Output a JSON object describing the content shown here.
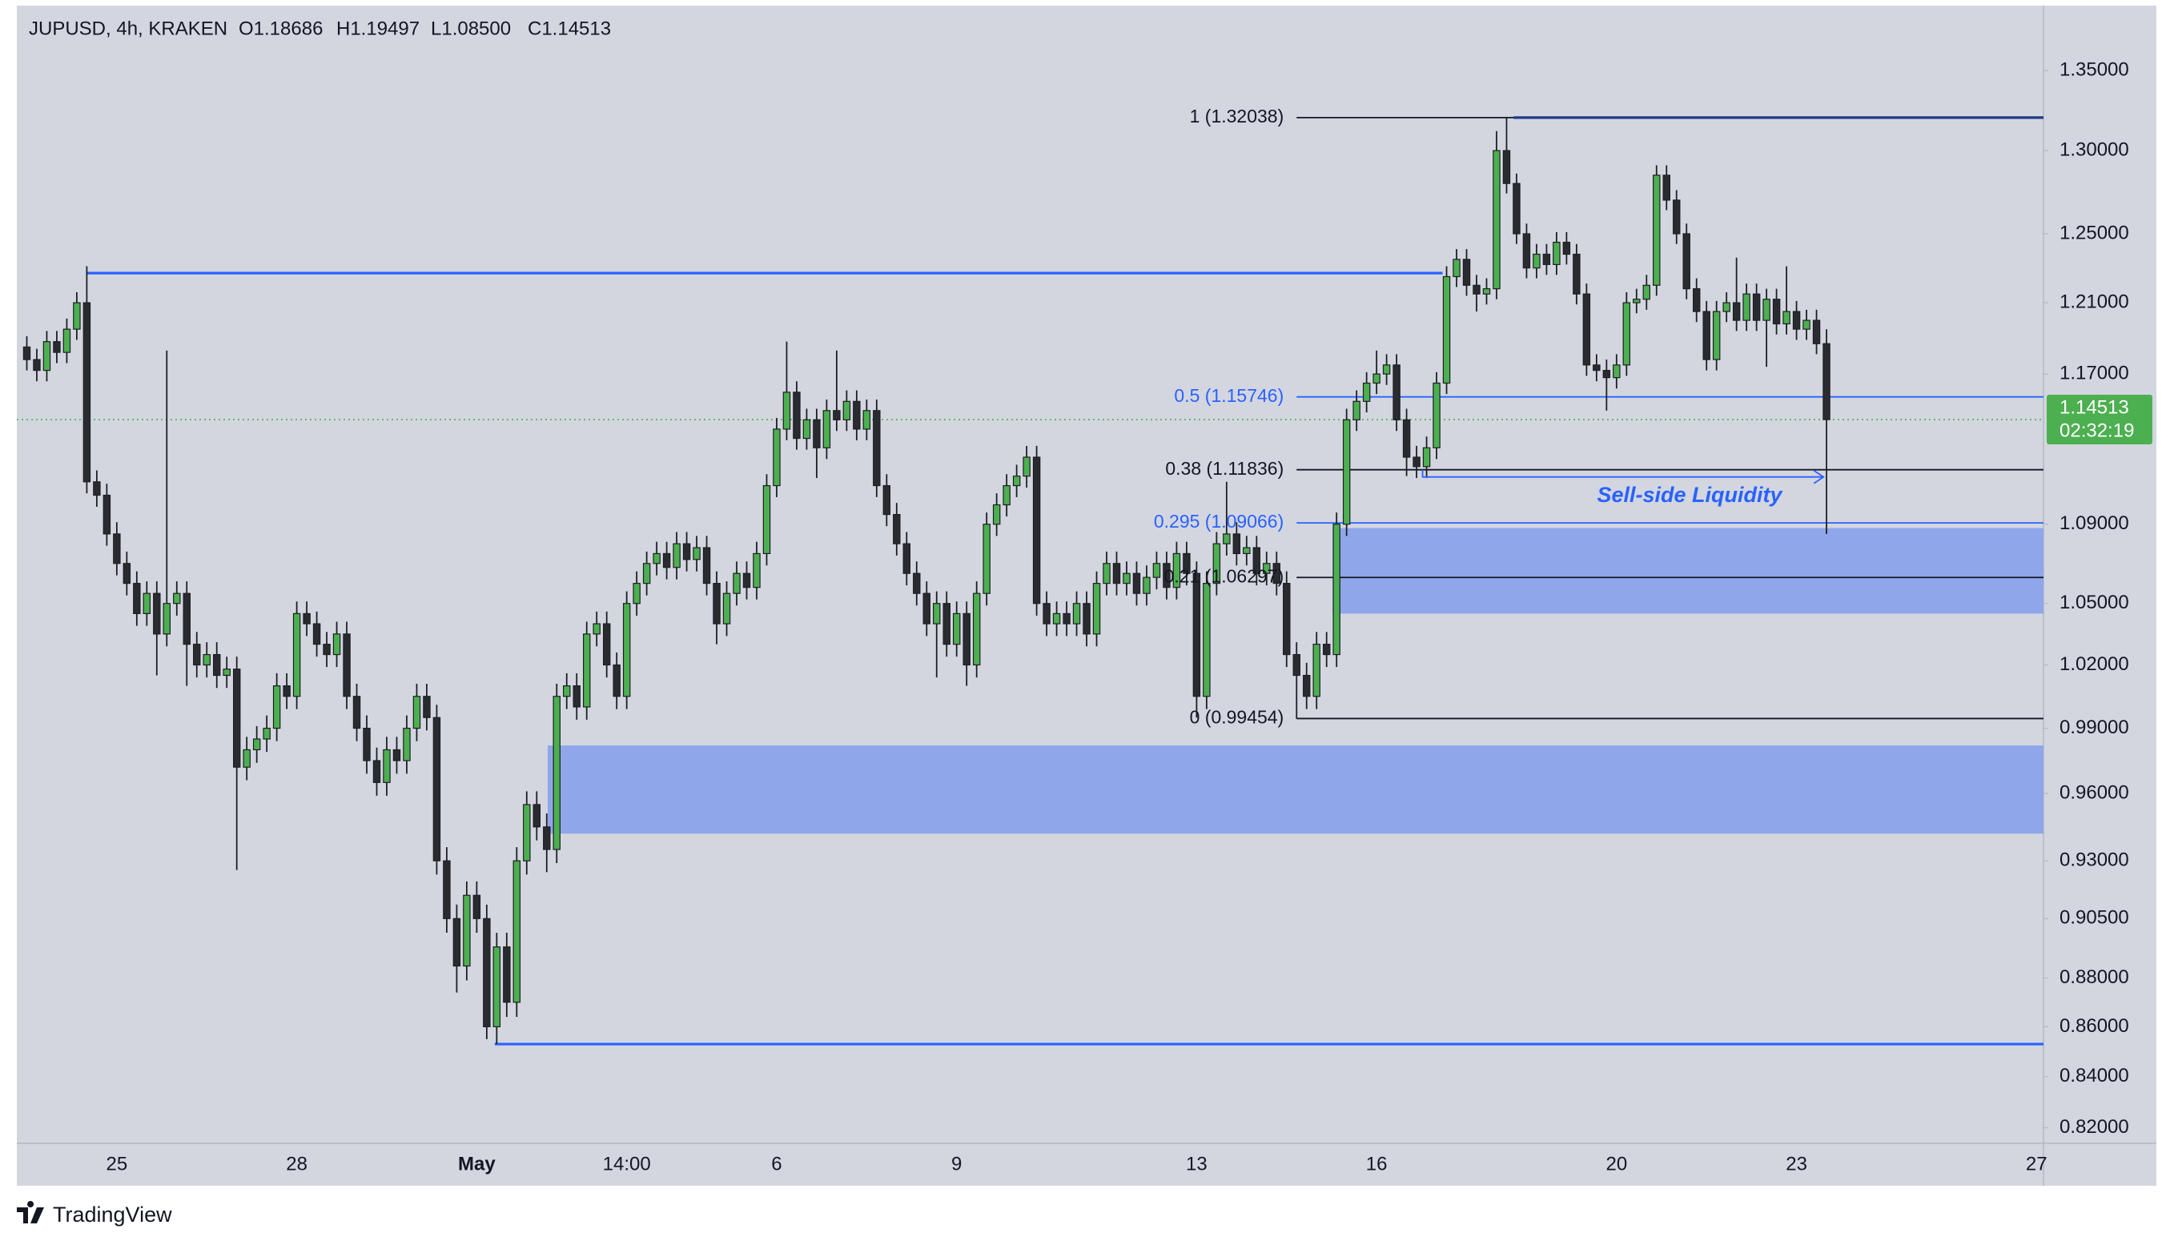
{
  "header": {
    "symbol": "JUPUSD, 4h, KRAKEN",
    "ohlc": [
      "O1.18686",
      "H1.19497",
      "L1.08500",
      "C1.14513"
    ]
  },
  "chart_data": {
    "type": "candlestick",
    "categories": [
      null,
      null,
      null,
      null,
      null,
      null,
      null,
      null,
      null,
      "25",
      null,
      null,
      null,
      null,
      null,
      null,
      null,
      null,
      null,
      null,
      null,
      null,
      null,
      null,
      null,
      null,
      null,
      "28",
      null,
      null,
      null,
      null,
      null,
      null,
      null,
      null,
      null,
      null,
      null,
      null,
      null,
      null,
      null,
      null,
      null,
      "May",
      null,
      null,
      null,
      null,
      null,
      null,
      null,
      null,
      null,
      null,
      null,
      null,
      null,
      null,
      "14:00",
      null,
      null,
      null,
      null,
      null,
      null,
      null,
      null,
      null,
      null,
      null,
      null,
      null,
      null,
      "6",
      null,
      null,
      null,
      null,
      null,
      null,
      null,
      null,
      null,
      null,
      null,
      null,
      null,
      null,
      null,
      null,
      null,
      "9",
      null,
      null,
      null,
      null,
      null,
      null,
      null,
      null,
      null,
      null,
      null,
      null,
      null,
      null,
      null,
      null,
      null,
      null,
      null,
      null,
      null,
      null,
      null,
      "13",
      null,
      null,
      null,
      null,
      null,
      null,
      null,
      null,
      null,
      null,
      null,
      null,
      null,
      null,
      null,
      null,
      null,
      "16",
      null,
      null,
      null,
      null,
      null,
      null,
      null,
      null,
      null,
      null,
      null,
      null,
      null,
      null,
      null,
      null,
      null,
      null,
      null,
      null,
      null,
      null,
      null,
      "20",
      null,
      null,
      null,
      null,
      null,
      null,
      null,
      null,
      null,
      null,
      null,
      null,
      null,
      null,
      null,
      null,
      null,
      "23",
      null,
      null,
      null,
      null,
      null,
      null,
      null,
      null,
      null,
      null,
      null,
      null,
      null,
      null,
      null,
      null,
      null,
      null,
      null,
      null,
      null,
      null,
      null,
      "27"
    ],
    "open": [
      1.185,
      1.178,
      1.172,
      1.188,
      1.182,
      1.195,
      1.21,
      1.112,
      1.105,
      1.085,
      1.07,
      1.06,
      1.045,
      1.055,
      1.035,
      1.05,
      1.055,
      1.03,
      1.02,
      1.025,
      1.015,
      1.018,
      0.972,
      0.98,
      0.985,
      0.99,
      1.01,
      1.005,
      1.045,
      1.04,
      1.03,
      1.025,
      1.035,
      1.005,
      0.99,
      0.975,
      0.965,
      0.98,
      0.975,
      0.99,
      1.005,
      0.995,
      0.93,
      0.905,
      0.885,
      0.915,
      0.905,
      0.86,
      0.893,
      0.87,
      0.93,
      0.955,
      0.945,
      0.935,
      1.005,
      1.01,
      1.0,
      1.035,
      1.04,
      1.02,
      1.005,
      1.05,
      1.06,
      1.07,
      1.075,
      1.068,
      1.08,
      1.072,
      1.078,
      1.06,
      1.04,
      1.055,
      1.065,
      1.058,
      1.075,
      1.11,
      1.14,
      1.16,
      1.135,
      1.145,
      1.13,
      1.15,
      1.145,
      1.155,
      1.14,
      1.15,
      1.11,
      1.095,
      1.08,
      1.065,
      1.055,
      1.04,
      1.05,
      1.03,
      1.045,
      1.02,
      1.055,
      1.09,
      1.1,
      1.11,
      1.115,
      1.125,
      1.05,
      1.04,
      1.045,
      1.04,
      1.05,
      1.035,
      1.06,
      1.07,
      1.06,
      1.065,
      1.055,
      1.063,
      1.07,
      1.058,
      1.075,
      1.065,
      1.005,
      1.06,
      1.08,
      1.085,
      1.075,
      1.078,
      1.065,
      1.07,
      1.06,
      1.025,
      1.015,
      1.005,
      1.03,
      1.025,
      1.09,
      1.145,
      1.155,
      1.165,
      1.17,
      1.175,
      1.145,
      1.125,
      1.12,
      1.13,
      1.165,
      1.225,
      1.235,
      1.22,
      1.215,
      1.218,
      1.3,
      1.28,
      1.25,
      1.23,
      1.238,
      1.232,
      1.245,
      1.238,
      1.215,
      1.175,
      1.172,
      1.168,
      1.175,
      1.21,
      1.212,
      1.22,
      1.285,
      1.27,
      1.25,
      1.218,
      1.205,
      1.178,
      1.205,
      1.21,
      1.2,
      1.215,
      1.2,
      1.212,
      1.198,
      1.205,
      1.195,
      1.2,
      1.18686,
      null,
      null,
      null,
      null,
      null,
      null,
      null,
      null,
      null,
      null,
      null,
      null,
      null,
      null,
      null,
      null,
      null,
      null,
      null,
      null,
      null
    ],
    "high": [
      1.191,
      1.184,
      1.194,
      1.194,
      1.201,
      1.216,
      1.231,
      1.118,
      1.111,
      1.091,
      1.076,
      1.066,
      1.061,
      1.061,
      1.183,
      1.061,
      1.061,
      1.036,
      1.031,
      1.031,
      1.024,
      1.024,
      0.986,
      0.991,
      0.996,
      1.016,
      1.016,
      1.051,
      1.051,
      1.046,
      1.036,
      1.041,
      1.041,
      1.011,
      0.996,
      0.981,
      0.986,
      0.986,
      0.996,
      1.011,
      1.011,
      1.001,
      0.936,
      0.911,
      0.921,
      0.921,
      0.911,
      0.899,
      0.899,
      0.936,
      0.961,
      0.961,
      0.951,
      1.011,
      1.016,
      1.016,
      1.041,
      1.046,
      1.046,
      1.026,
      1.056,
      1.066,
      1.076,
      1.081,
      1.081,
      1.086,
      1.086,
      1.084,
      1.084,
      1.066,
      1.061,
      1.071,
      1.071,
      1.081,
      1.116,
      1.146,
      1.188,
      1.166,
      1.151,
      1.151,
      1.156,
      1.183,
      1.161,
      1.161,
      1.156,
      1.156,
      1.116,
      1.101,
      1.086,
      1.071,
      1.061,
      1.056,
      1.056,
      1.051,
      1.051,
      1.061,
      1.096,
      1.106,
      1.116,
      1.121,
      1.131,
      1.131,
      1.056,
      1.051,
      1.051,
      1.056,
      1.056,
      1.066,
      1.076,
      1.076,
      1.071,
      1.071,
      1.069,
      1.076,
      1.076,
      1.081,
      1.081,
      1.071,
      1.066,
      1.086,
      1.112,
      1.091,
      1.084,
      1.084,
      1.076,
      1.076,
      1.066,
      1.031,
      1.021,
      1.036,
      1.036,
      1.096,
      1.151,
      1.161,
      1.171,
      1.183,
      1.181,
      1.181,
      1.151,
      1.131,
      1.136,
      1.171,
      1.231,
      1.241,
      1.241,
      1.226,
      1.224,
      1.312,
      1.32038,
      1.286,
      1.256,
      1.244,
      1.244,
      1.251,
      1.251,
      1.244,
      1.221,
      1.181,
      1.178,
      1.181,
      1.216,
      1.218,
      1.226,
      1.291,
      1.291,
      1.276,
      1.256,
      1.224,
      1.211,
      1.211,
      1.216,
      1.236,
      1.221,
      1.221,
      1.218,
      1.218,
      1.231,
      1.211,
      1.206,
      1.206,
      1.19497,
      null,
      null,
      null,
      null,
      null,
      null,
      null,
      null,
      null,
      null,
      null,
      null,
      null,
      null,
      null,
      null,
      null,
      null,
      null,
      null,
      null
    ],
    "low": [
      1.172,
      1.166,
      1.166,
      1.176,
      1.176,
      1.189,
      1.106,
      1.099,
      1.079,
      1.064,
      1.054,
      1.039,
      1.039,
      1.015,
      1.029,
      1.044,
      1.01,
      1.014,
      1.014,
      1.009,
      1.009,
      0.926,
      0.966,
      0.974,
      0.979,
      0.984,
      0.999,
      0.999,
      1.034,
      1.024,
      1.019,
      1.019,
      0.999,
      0.984,
      0.969,
      0.959,
      0.959,
      0.969,
      0.969,
      0.984,
      0.989,
      0.924,
      0.899,
      0.874,
      0.879,
      0.899,
      0.855,
      0.853,
      0.864,
      0.864,
      0.924,
      0.939,
      0.925,
      0.929,
      0.999,
      0.994,
      0.994,
      1.029,
      1.014,
      0.999,
      0.999,
      1.044,
      1.054,
      1.064,
      1.062,
      1.062,
      1.066,
      1.066,
      1.054,
      1.03,
      1.034,
      1.049,
      1.052,
      1.052,
      1.069,
      1.104,
      1.134,
      1.129,
      1.129,
      1.114,
      1.124,
      1.139,
      1.139,
      1.134,
      1.134,
      1.104,
      1.089,
      1.074,
      1.059,
      1.049,
      1.034,
      1.014,
      1.024,
      1.024,
      1.01,
      1.014,
      1.049,
      1.084,
      1.094,
      1.104,
      1.109,
      1.044,
      1.034,
      1.034,
      1.034,
      1.034,
      1.029,
      1.029,
      1.054,
      1.054,
      1.054,
      1.049,
      1.049,
      1.057,
      1.052,
      1.052,
      1.059,
      0.995,
      0.999,
      1.054,
      1.074,
      1.069,
      1.069,
      1.059,
      1.059,
      1.054,
      1.019,
      0.9945,
      0.999,
      0.999,
      1.019,
      1.019,
      1.084,
      1.139,
      1.149,
      1.159,
      1.164,
      1.139,
      1.115,
      1.114,
      1.114,
      1.124,
      1.159,
      1.219,
      1.214,
      1.205,
      1.209,
      1.212,
      1.274,
      1.244,
      1.224,
      1.224,
      1.226,
      1.226,
      1.232,
      1.209,
      1.169,
      1.166,
      1.15,
      1.162,
      1.169,
      1.204,
      1.206,
      1.214,
      1.264,
      1.244,
      1.212,
      1.199,
      1.172,
      1.172,
      1.199,
      1.194,
      1.194,
      1.194,
      1.174,
      1.192,
      1.192,
      1.189,
      1.189,
      1.181,
      1.085,
      null,
      null,
      null,
      null,
      null,
      null,
      null,
      null,
      null,
      null,
      null,
      null,
      null,
      null,
      null,
      null,
      null,
      null,
      null,
      null,
      null
    ],
    "close": [
      1.178,
      1.172,
      1.188,
      1.182,
      1.195,
      1.21,
      1.112,
      1.105,
      1.085,
      1.07,
      1.06,
      1.045,
      1.055,
      1.035,
      1.05,
      1.055,
      1.03,
      1.02,
      1.025,
      1.015,
      1.018,
      0.972,
      0.98,
      0.985,
      0.99,
      1.01,
      1.005,
      1.045,
      1.04,
      1.03,
      1.025,
      1.035,
      1.005,
      0.99,
      0.975,
      0.965,
      0.98,
      0.975,
      0.99,
      1.005,
      0.995,
      0.93,
      0.905,
      0.885,
      0.915,
      0.905,
      0.86,
      0.893,
      0.87,
      0.93,
      0.955,
      0.945,
      0.935,
      1.005,
      1.01,
      1.0,
      1.035,
      1.04,
      1.02,
      1.005,
      1.05,
      1.06,
      1.07,
      1.075,
      1.068,
      1.08,
      1.072,
      1.078,
      1.06,
      1.04,
      1.055,
      1.065,
      1.058,
      1.075,
      1.11,
      1.14,
      1.16,
      1.135,
      1.145,
      1.13,
      1.15,
      1.145,
      1.155,
      1.14,
      1.15,
      1.11,
      1.095,
      1.08,
      1.065,
      1.055,
      1.04,
      1.05,
      1.03,
      1.045,
      1.02,
      1.055,
      1.09,
      1.1,
      1.11,
      1.115,
      1.125,
      1.05,
      1.04,
      1.045,
      1.04,
      1.05,
      1.035,
      1.06,
      1.07,
      1.06,
      1.065,
      1.055,
      1.063,
      1.07,
      1.058,
      1.075,
      1.065,
      1.005,
      1.06,
      1.08,
      1.085,
      1.075,
      1.078,
      1.065,
      1.07,
      1.06,
      1.025,
      1.015,
      1.005,
      1.03,
      1.025,
      1.09,
      1.145,
      1.155,
      1.165,
      1.17,
      1.175,
      1.145,
      1.125,
      1.12,
      1.13,
      1.165,
      1.225,
      1.235,
      1.22,
      1.215,
      1.218,
      1.3,
      1.28,
      1.25,
      1.23,
      1.238,
      1.232,
      1.245,
      1.238,
      1.215,
      1.175,
      1.172,
      1.168,
      1.175,
      1.21,
      1.212,
      1.22,
      1.285,
      1.27,
      1.25,
      1.218,
      1.205,
      1.178,
      1.205,
      1.21,
      1.2,
      1.215,
      1.2,
      1.212,
      1.198,
      1.205,
      1.195,
      1.2,
      1.18686,
      1.14513,
      null,
      null,
      null,
      null,
      null,
      null,
      null,
      null,
      null,
      null,
      null,
      null,
      null,
      null,
      null,
      null,
      null,
      null,
      null,
      null,
      null
    ],
    "up_color": "#4caf50",
    "down_color": "#2a2b30",
    "wick_color": "#1e1f24",
    "log_scale": true,
    "ylim": [
      0.814,
      1.392
    ],
    "yticks": [
      {
        "value": 1.35,
        "label": "1.35000"
      },
      {
        "value": 1.3,
        "label": "1.30000"
      },
      {
        "value": 1.25,
        "label": "1.25000"
      },
      {
        "value": 1.21,
        "label": "1.21000"
      },
      {
        "value": 1.17,
        "label": "1.17000"
      },
      {
        "value": 1.09,
        "label": "1.09000"
      },
      {
        "value": 1.05,
        "label": "1.05000"
      },
      {
        "value": 1.02,
        "label": "1.02000"
      },
      {
        "value": 0.99,
        "label": "0.99000"
      },
      {
        "value": 0.96,
        "label": "0.96000"
      },
      {
        "value": 0.93,
        "label": "0.93000"
      },
      {
        "value": 0.905,
        "label": "0.90500"
      },
      {
        "value": 0.88,
        "label": "0.88000"
      },
      {
        "value": 0.86,
        "label": "0.86000"
      },
      {
        "value": 0.84,
        "label": "0.84000"
      },
      {
        "value": 0.82,
        "label": "0.82000"
      }
    ],
    "last_price": {
      "value": 1.14513,
      "label": "1.14513"
    },
    "countdown": "02:32:19",
    "fib_levels": [
      {
        "label": "1 (1.32038)",
        "price": 1.32038,
        "color": "#131722"
      },
      {
        "label": "0.5 (1.15746)",
        "price": 1.15746,
        "color": "#2962ff"
      },
      {
        "label": "0.38 (1.11836)",
        "price": 1.11836,
        "color": "#131722"
      },
      {
        "label": "0.295 (1.09066)",
        "price": 1.09066,
        "color": "#2962ff"
      },
      {
        "label": "0.21 (1.06297)",
        "price": 1.06297,
        "color": "#131722"
      },
      {
        "label": "0 (0.99454)",
        "price": 0.99454,
        "color": "#131722"
      }
    ],
    "levels": [
      {
        "price": 1.227,
        "color": "#2962ff"
      },
      {
        "price": 0.853,
        "color": "#2962ff"
      },
      {
        "price": 1.32038,
        "color": "#1e3a8a"
      }
    ],
    "zones": [
      {
        "top": 1.088,
        "bottom": 1.045,
        "color": "#8fa6ea"
      },
      {
        "top": 0.982,
        "bottom": 0.942,
        "color": "#8fa6ea"
      }
    ],
    "annotation": "Sell-side Liquidity"
  },
  "footer": {
    "brand": "TradingView"
  }
}
